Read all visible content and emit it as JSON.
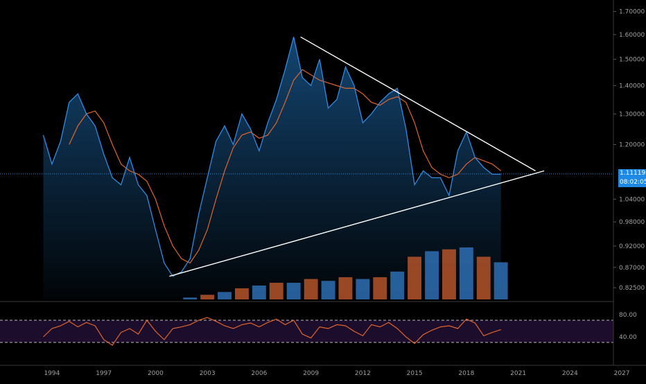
{
  "colors": {
    "background": "#000000",
    "price_line": "#2e8be6",
    "price_fill": "#1a5c96",
    "moving_average": "#e2652a",
    "trendline": "#ffffff",
    "current_price_line": "#2e8be6",
    "volume_up": "#2e6fb3",
    "volume_down": "#b4532a",
    "rsi_line": "#e2652a",
    "rsi_band": "#1b0d2b",
    "axis_text": "#a0a0a0",
    "badge": "#1e88e5"
  },
  "price_axis": {
    "ticks": [
      "1.70000",
      "1.60000",
      "1.50000",
      "1.40000",
      "1.30000",
      "1.20000",
      "1.04000",
      "0.98000",
      "0.92000",
      "0.87000",
      "0.82500"
    ]
  },
  "current_price": {
    "value": "1.11119",
    "countdown": "08:02:05"
  },
  "rsi_axis": {
    "ticks": [
      "80.00",
      "40.00"
    ]
  },
  "time_axis": {
    "ticks": [
      "1994",
      "1997",
      "2000",
      "2003",
      "2006",
      "2009",
      "2012",
      "2015",
      "2018",
      "2021",
      "2024",
      "2027"
    ]
  },
  "chart_data": [
    {
      "type": "line",
      "title": "",
      "series": [
        {
          "kind": "price",
          "x": [
            1993.5,
            1994.0,
            1994.5,
            1995.0,
            1995.5,
            1996.0,
            1996.5,
            1997.0,
            1997.5,
            1998.0,
            1998.5,
            1999.0,
            1999.5,
            2000.0,
            2000.5,
            2001.0,
            2001.5,
            2002.0,
            2002.5,
            2003.0,
            2003.5,
            2004.0,
            2004.5,
            2005.0,
            2005.5,
            2006.0,
            2006.5,
            2007.0,
            2007.5,
            2008.0,
            2008.5,
            2009.0,
            2009.5,
            2010.0,
            2010.5,
            2011.0,
            2011.5,
            2012.0,
            2012.5,
            2013.0,
            2013.5,
            2014.0,
            2014.5,
            2015.0,
            2015.5,
            2016.0,
            2016.5,
            2017.0,
            2017.5,
            2018.0,
            2018.5,
            2019.0,
            2019.5,
            2020.0
          ],
          "y": [
            1.23,
            1.14,
            1.21,
            1.34,
            1.37,
            1.3,
            1.26,
            1.17,
            1.1,
            1.08,
            1.16,
            1.08,
            1.05,
            0.96,
            0.88,
            0.85,
            0.86,
            0.89,
            1.0,
            1.1,
            1.21,
            1.26,
            1.2,
            1.3,
            1.25,
            1.18,
            1.27,
            1.35,
            1.46,
            1.59,
            1.43,
            1.4,
            1.5,
            1.32,
            1.35,
            1.47,
            1.4,
            1.27,
            1.3,
            1.34,
            1.37,
            1.39,
            1.25,
            1.08,
            1.12,
            1.1,
            1.1,
            1.05,
            1.18,
            1.24,
            1.16,
            1.13,
            1.11,
            1.11
          ]
        },
        {
          "kind": "moving_average",
          "x": [
            1995.0,
            1995.5,
            1996.0,
            1996.5,
            1997.0,
            1997.5,
            1998.0,
            1998.5,
            1999.0,
            1999.5,
            2000.0,
            2000.5,
            2001.0,
            2001.5,
            2002.0,
            2002.5,
            2003.0,
            2003.5,
            2004.0,
            2004.5,
            2005.0,
            2005.5,
            2006.0,
            2006.5,
            2007.0,
            2007.5,
            2008.0,
            2008.5,
            2009.0,
            2009.5,
            2010.0,
            2010.5,
            2011.0,
            2011.5,
            2012.0,
            2012.5,
            2013.0,
            2013.5,
            2014.0,
            2014.5,
            2015.0,
            2015.5,
            2016.0,
            2016.5,
            2017.0,
            2017.5,
            2018.0,
            2018.5,
            2019.0,
            2019.5,
            2020.0
          ],
          "y": [
            1.2,
            1.26,
            1.3,
            1.31,
            1.27,
            1.2,
            1.14,
            1.12,
            1.11,
            1.09,
            1.04,
            0.97,
            0.92,
            0.89,
            0.88,
            0.91,
            0.96,
            1.04,
            1.12,
            1.19,
            1.23,
            1.24,
            1.22,
            1.23,
            1.27,
            1.34,
            1.42,
            1.46,
            1.44,
            1.42,
            1.41,
            1.4,
            1.39,
            1.39,
            1.37,
            1.34,
            1.33,
            1.35,
            1.36,
            1.34,
            1.27,
            1.18,
            1.13,
            1.11,
            1.1,
            1.11,
            1.14,
            1.16,
            1.15,
            1.14,
            1.12
          ]
        }
      ],
      "trendlines": [
        {
          "x": [
            2008.4,
            2022.0
          ],
          "y": [
            1.59,
            1.12
          ]
        },
        {
          "x": [
            2000.8,
            2022.5
          ],
          "y": [
            0.85,
            1.12
          ]
        }
      ],
      "ylim": [
        0.8,
        1.72
      ],
      "scale": "log"
    },
    {
      "type": "bar",
      "title": "",
      "x": [
        2002,
        2003,
        2004,
        2005,
        2006,
        2007,
        2008,
        2009,
        2010,
        2011,
        2012,
        2013,
        2014,
        2015,
        2016,
        2017,
        2018,
        2019,
        2020
      ],
      "values": [
        2,
        5,
        8,
        12,
        15,
        18,
        18,
        22,
        20,
        24,
        22,
        24,
        30,
        46,
        52,
        54,
        56,
        46,
        40
      ]
    },
    {
      "type": "line",
      "title": "",
      "x": [
        1993.5,
        1994.0,
        1994.5,
        1995.0,
        1995.5,
        1996.0,
        1996.5,
        1997.0,
        1997.5,
        1998.0,
        1998.5,
        1999.0,
        1999.5,
        2000.0,
        2000.5,
        2001.0,
        2001.5,
        2002.0,
        2002.5,
        2003.0,
        2003.5,
        2004.0,
        2004.5,
        2005.0,
        2005.5,
        2006.0,
        2006.5,
        2007.0,
        2007.5,
        2008.0,
        2008.5,
        2009.0,
        2009.5,
        2010.0,
        2010.5,
        2011.0,
        2011.5,
        2012.0,
        2012.5,
        2013.0,
        2013.5,
        2014.0,
        2014.5,
        2015.0,
        2015.5,
        2016.0,
        2016.5,
        2017.0,
        2017.5,
        2018.0,
        2018.5,
        2019.0,
        2019.5,
        2020.0
      ],
      "y": [
        40,
        55,
        60,
        68,
        58,
        66,
        60,
        35,
        25,
        48,
        55,
        45,
        70,
        50,
        35,
        55,
        58,
        62,
        70,
        75,
        68,
        60,
        55,
        62,
        65,
        58,
        66,
        72,
        62,
        70,
        45,
        38,
        58,
        55,
        62,
        60,
        50,
        42,
        62,
        58,
        66,
        55,
        40,
        28,
        44,
        52,
        58,
        60,
        55,
        72,
        65,
        42,
        48,
        53
      ],
      "ylim": [
        0,
        100
      ],
      "reference_lines": [
        70,
        30
      ]
    }
  ]
}
